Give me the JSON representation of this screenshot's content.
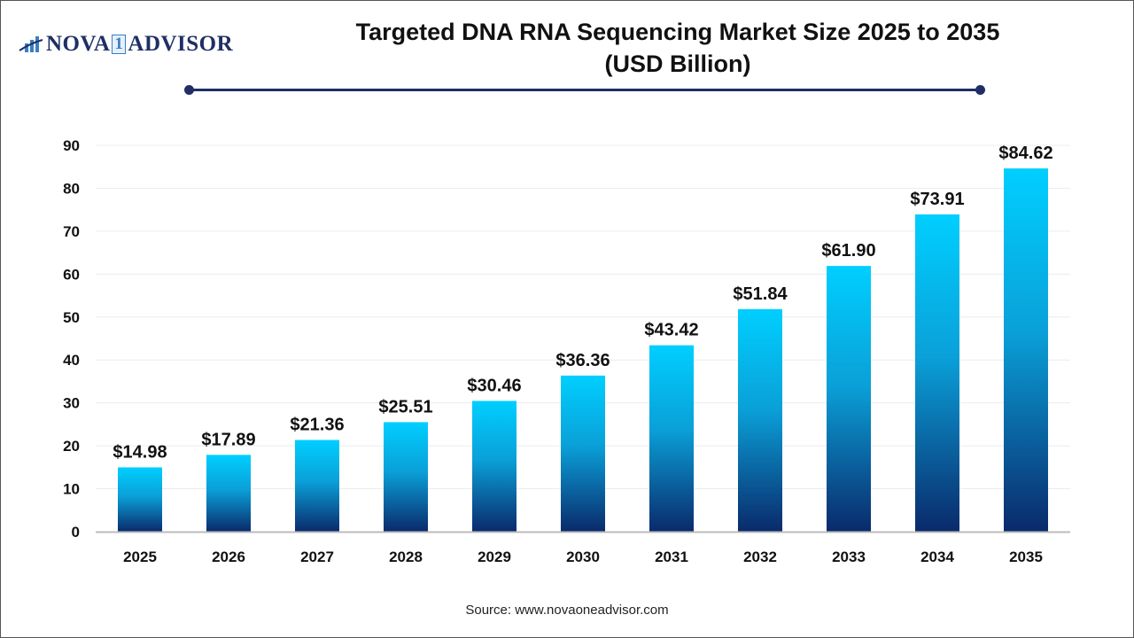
{
  "logo": {
    "text_left": "NOVA",
    "text_mid": "1",
    "text_right": "ADVISOR"
  },
  "title_line1": "Targeted DNA RNA Sequencing Market Size 2025 to 2035",
  "title_line2": "(USD Billion)",
  "source": "Source: www.novaoneadvisor.com",
  "colors": {
    "bar_top": "#00CFFF",
    "bar_bottom": "#0A2A6B",
    "accent": "#1F2F66"
  },
  "chart_data": {
    "type": "bar",
    "categories": [
      "2025",
      "2026",
      "2027",
      "2028",
      "2029",
      "2030",
      "2031",
      "2032",
      "2033",
      "2034",
      "2035"
    ],
    "values": [
      14.98,
      17.89,
      21.36,
      25.51,
      30.46,
      36.36,
      43.42,
      51.84,
      61.9,
      73.91,
      84.62
    ],
    "data_labels": [
      "$14.98",
      "$17.89",
      "$21.36",
      "$25.51",
      "$30.46",
      "$36.36",
      "$43.42",
      "$51.84",
      "$61.90",
      "$73.91",
      "$84.62"
    ],
    "title": "Targeted DNA RNA Sequencing Market Size 2025 to 2035 (USD Billion)",
    "xlabel": "",
    "ylabel": "",
    "ylim": [
      0,
      90
    ],
    "yticks": [
      0,
      10,
      20,
      30,
      40,
      50,
      60,
      70,
      80,
      90
    ],
    "grid": true,
    "legend": "none"
  }
}
